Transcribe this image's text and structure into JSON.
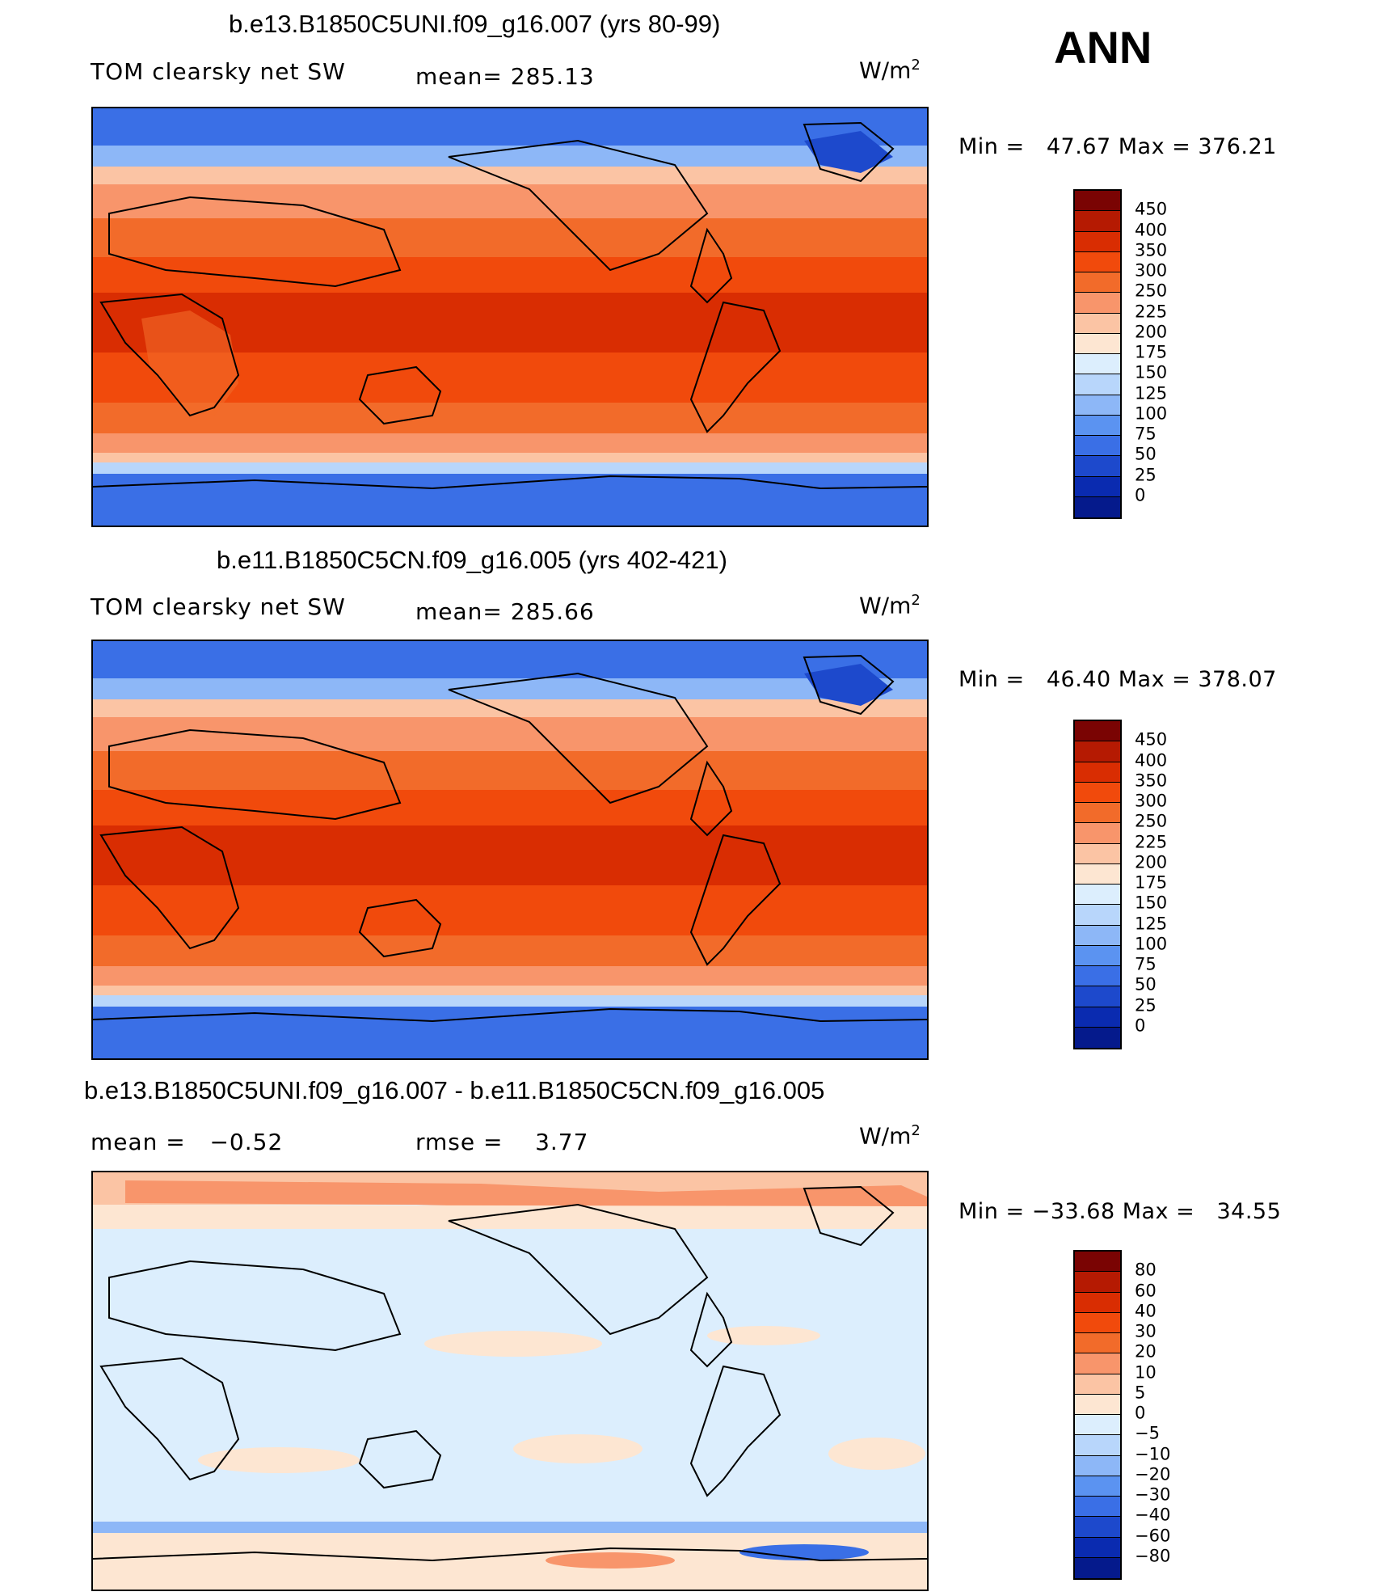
{
  "season": "ANN",
  "panels": [
    {
      "title": "b.e13.B1850C5UNI.f09_g16.007 (yrs 80-99)",
      "var_label": "TOM clearsky net SW",
      "stat_text": "mean= 285.13",
      "units": "W/m",
      "units_exp": "2",
      "minmax": "Min =   47.67 Max = 376.21"
    },
    {
      "title": "b.e11.B1850C5CN.f09_g16.005 (yrs 402-421)",
      "var_label": "TOM clearsky net SW",
      "stat_text": "mean= 285.66",
      "units": "W/m",
      "units_exp": "2",
      "minmax": "Min =   46.40 Max = 378.07"
    },
    {
      "title": "b.e13.B1850C5UNI.f09_g16.007 - b.e11.B1850C5CN.f09_g16.005",
      "mean_text": "mean =   −0.52",
      "rmse_text": "rmse =    3.77",
      "units": "W/m",
      "units_exp": "2",
      "minmax": "Min = −33.68 Max =   34.55"
    }
  ],
  "colorbars": {
    "abs": {
      "labels": [
        "450",
        "400",
        "350",
        "300",
        "250",
        "225",
        "200",
        "175",
        "150",
        "125",
        "100",
        "75",
        "50",
        "25",
        "0"
      ],
      "colors": [
        "#7a0403",
        "#b51a02",
        "#d92d02",
        "#f14a0c",
        "#f26b2a",
        "#f8956b",
        "#fbc4a4",
        "#fde6d2",
        "#dceefd",
        "#b8d6fb",
        "#8db7f7",
        "#5b93f1",
        "#3a6fe6",
        "#1d49cc",
        "#0a2bb0",
        "#051a8c"
      ]
    },
    "diff": {
      "labels": [
        "80",
        "60",
        "40",
        "30",
        "20",
        "10",
        "5",
        "0",
        "−5",
        "−10",
        "−20",
        "−30",
        "−40",
        "−60",
        "−80"
      ],
      "colors": [
        "#7a0403",
        "#b51a02",
        "#d92d02",
        "#f14a0c",
        "#f26b2a",
        "#f8956b",
        "#fbc4a4",
        "#fde6d2",
        "#dceefd",
        "#b8d6fb",
        "#8db7f7",
        "#5b93f1",
        "#3a6fe6",
        "#1d49cc",
        "#0a2bb0",
        "#051a8c"
      ]
    }
  },
  "chart_data": [
    {
      "type": "heatmap",
      "title": "b.e13.B1850C5UNI.f09_g16.007 (yrs 80-99)",
      "variable": "TOM clearsky net SW",
      "mean": 285.13,
      "min": 47.67,
      "max": 376.21,
      "units": "W/m2",
      "contour_levels": [
        0,
        25,
        50,
        75,
        100,
        125,
        150,
        175,
        200,
        225,
        250,
        300,
        350,
        400,
        450
      ]
    },
    {
      "type": "heatmap",
      "title": "b.e11.B1850C5CN.f09_g16.005 (yrs 402-421)",
      "variable": "TOM clearsky net SW",
      "mean": 285.66,
      "min": 46.4,
      "max": 378.07,
      "units": "W/m2",
      "contour_levels": [
        0,
        25,
        50,
        75,
        100,
        125,
        150,
        175,
        200,
        225,
        250,
        300,
        350,
        400,
        450
      ]
    },
    {
      "type": "heatmap",
      "title": "b.e13.B1850C5UNI.f09_g16.007 - b.e11.B1850C5CN.f09_g16.005",
      "mean": -0.52,
      "rmse": 3.77,
      "min": -33.68,
      "max": 34.55,
      "units": "W/m2",
      "contour_levels": [
        -80,
        -60,
        -40,
        -30,
        -20,
        -10,
        -5,
        0,
        5,
        10,
        20,
        30,
        40,
        60,
        80
      ]
    }
  ]
}
